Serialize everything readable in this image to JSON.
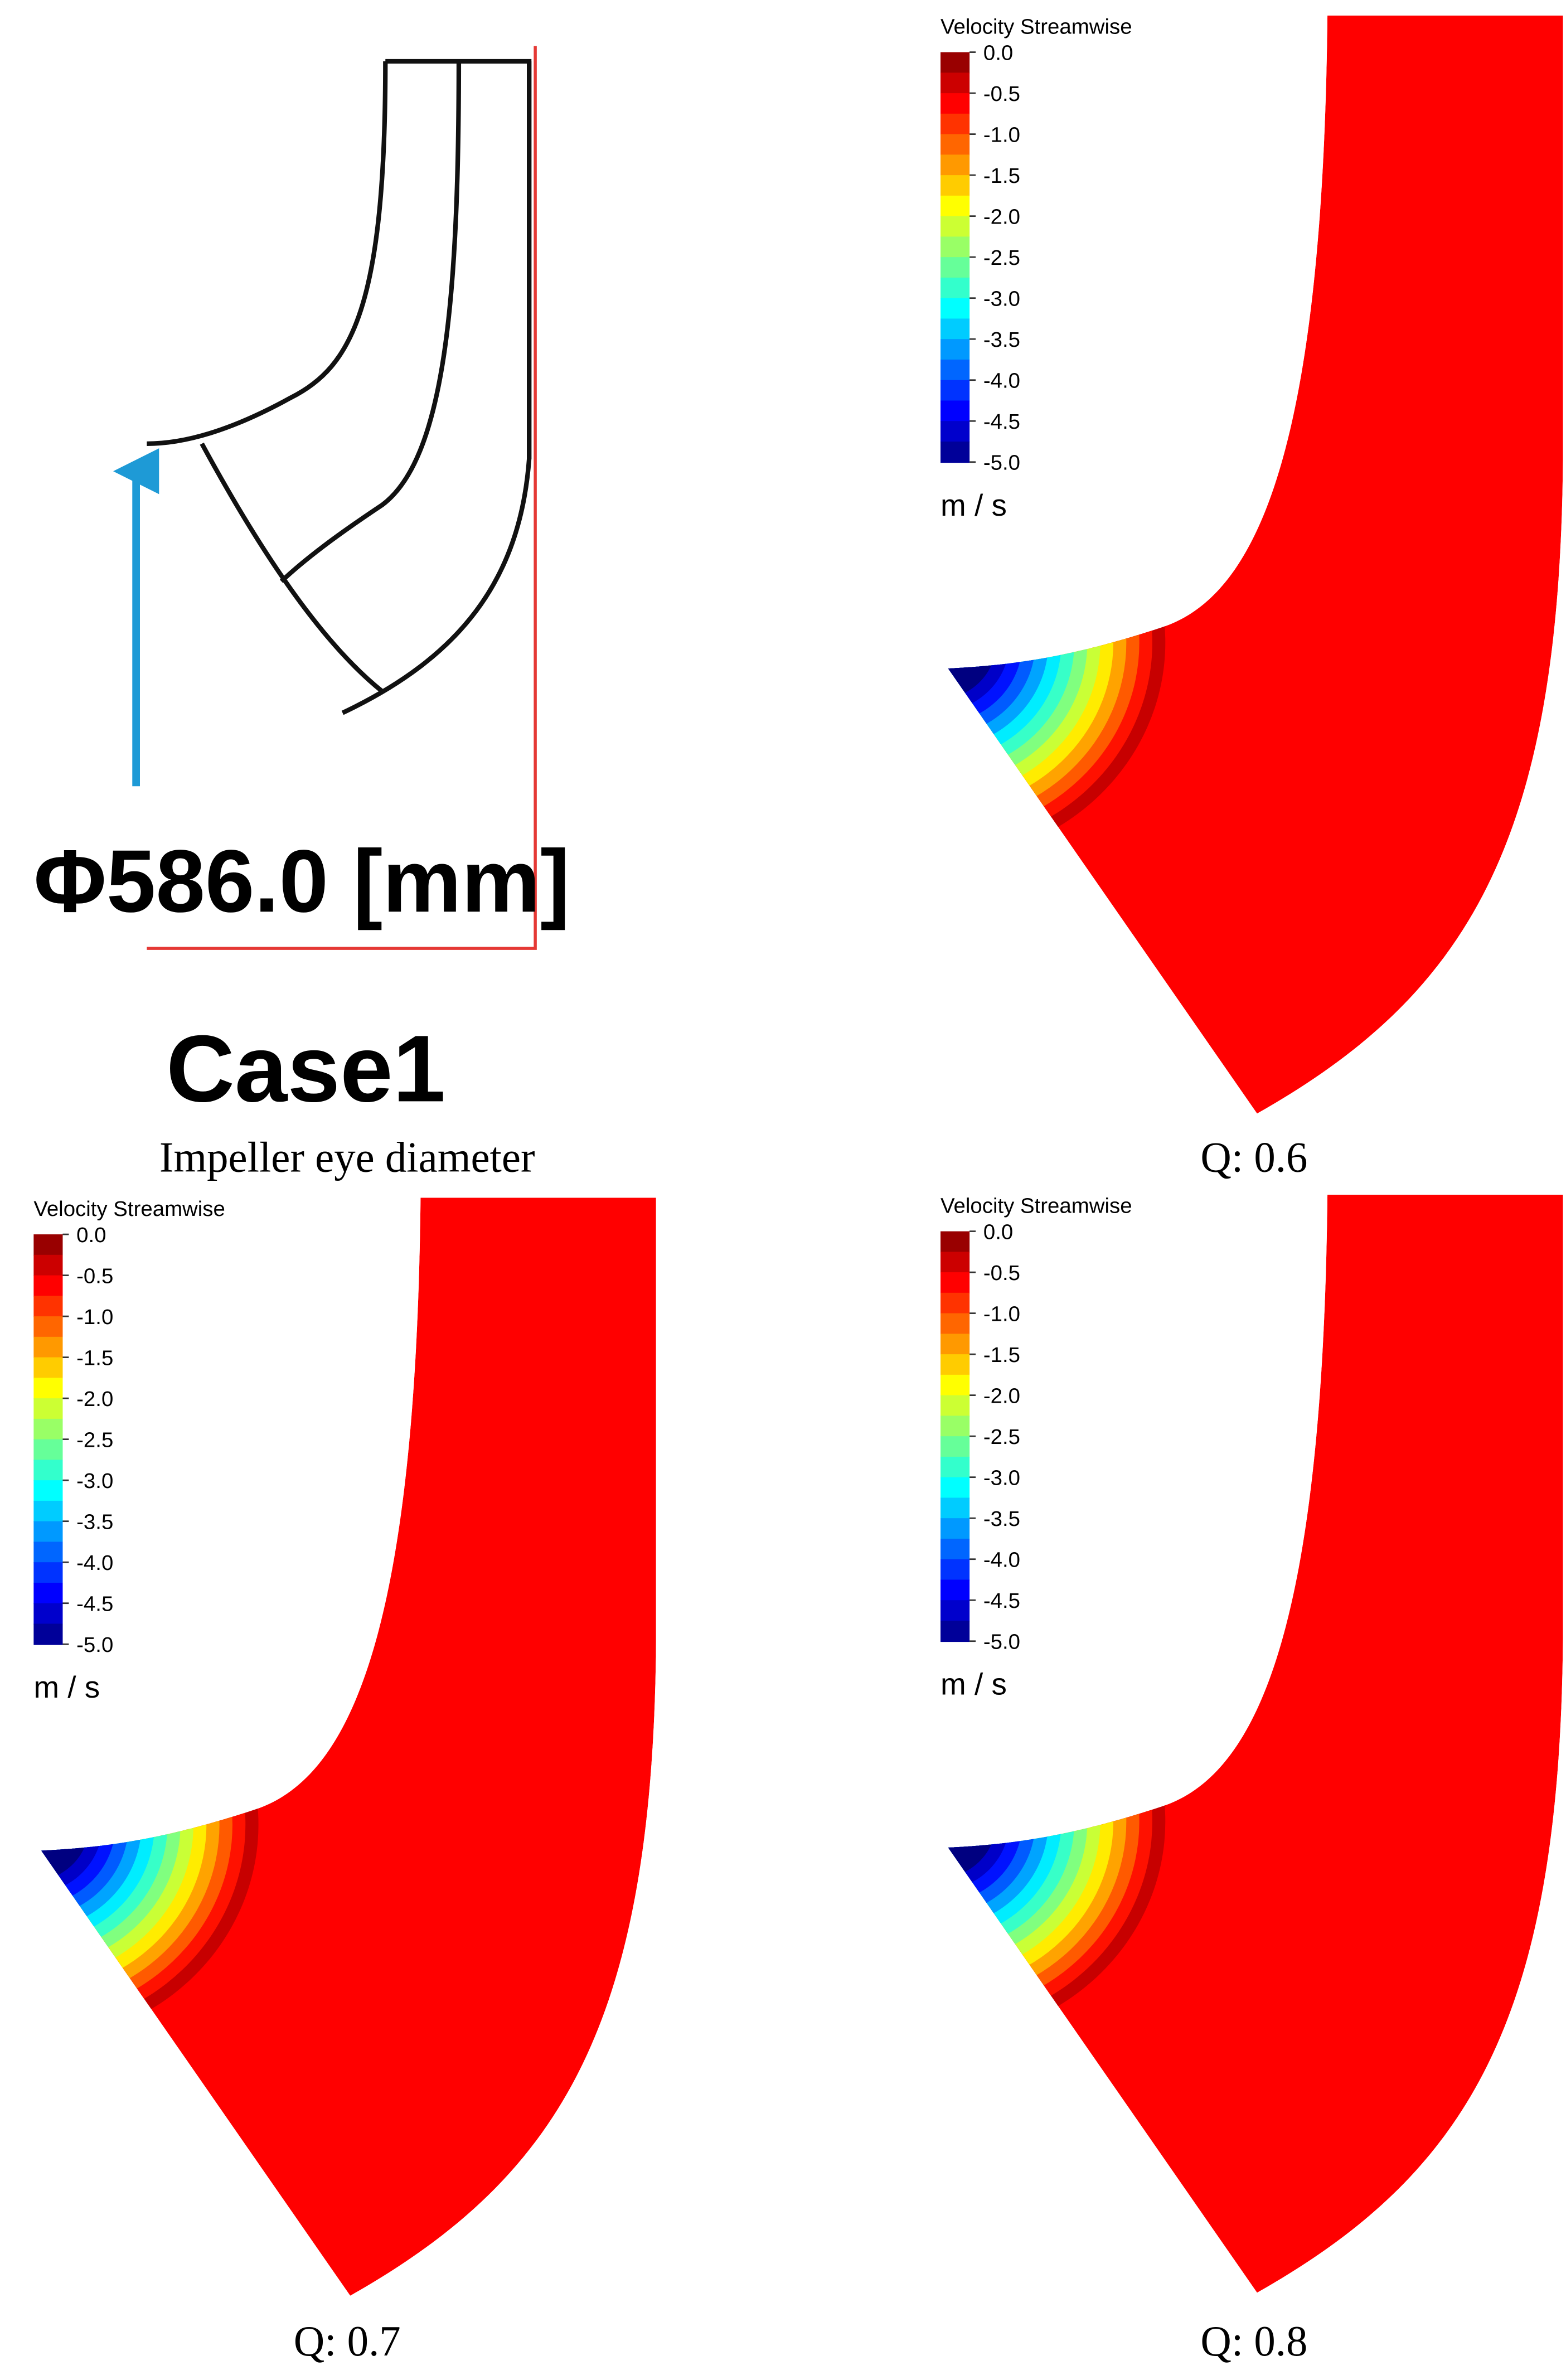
{
  "schematic": {
    "dimension": "Φ586.0 [mm]",
    "case": "Case1",
    "caption": "Impeller eye diameter"
  },
  "panels": [
    {
      "caption": "Q: 0.6",
      "legend": {
        "title": "Velocity Streamwise",
        "unit": "m / s",
        "ticks": [
          {
            "value": 0,
            "label": "0.0"
          },
          {
            "value": -0.5,
            "label": "-0.5"
          },
          {
            "value": -1,
            "label": "-1.0"
          },
          {
            "value": -1.5,
            "label": "-1.5"
          },
          {
            "value": -2,
            "label": "-2.0"
          },
          {
            "value": -2.5,
            "label": "-2.5"
          },
          {
            "value": -3,
            "label": "-3.0"
          },
          {
            "value": -3.5,
            "label": "-3.5"
          },
          {
            "value": -4,
            "label": "-4.0"
          },
          {
            "value": -4.5,
            "label": "-4.5"
          },
          {
            "value": -5,
            "label": "-5.0"
          }
        ]
      }
    },
    {
      "caption": "Q: 0.7",
      "legend": {
        "title": "Velocity Streamwise",
        "unit": "m / s",
        "ticks": [
          {
            "value": 0,
            "label": "0.0"
          },
          {
            "value": -0.5,
            "label": "-0.5"
          },
          {
            "value": -1,
            "label": "-1.0"
          },
          {
            "value": -1.5,
            "label": "-1.5"
          },
          {
            "value": -2,
            "label": "-2.0"
          },
          {
            "value": -2.5,
            "label": "-2.5"
          },
          {
            "value": -3,
            "label": "-3.0"
          },
          {
            "value": -3.5,
            "label": "-3.5"
          },
          {
            "value": -4,
            "label": "-4.0"
          },
          {
            "value": -4.5,
            "label": "-4.5"
          },
          {
            "value": -5,
            "label": "-5.0"
          }
        ]
      }
    },
    {
      "caption": "Q: 0.8",
      "legend": {
        "title": "Velocity Streamwise",
        "unit": "m / s",
        "ticks": [
          {
            "value": 0,
            "label": "0.0"
          },
          {
            "value": -0.5,
            "label": "-0.5"
          },
          {
            "value": -1,
            "label": "-1.0"
          },
          {
            "value": -1.5,
            "label": "-1.5"
          },
          {
            "value": -2,
            "label": "-2.0"
          },
          {
            "value": -2.5,
            "label": "-2.5"
          },
          {
            "value": -3,
            "label": "-3.0"
          },
          {
            "value": -3.5,
            "label": "-3.5"
          },
          {
            "value": -4,
            "label": "-4.0"
          },
          {
            "value": -4.5,
            "label": "-4.5"
          },
          {
            "value": -5,
            "label": "-5.0"
          }
        ]
      }
    }
  ]
}
